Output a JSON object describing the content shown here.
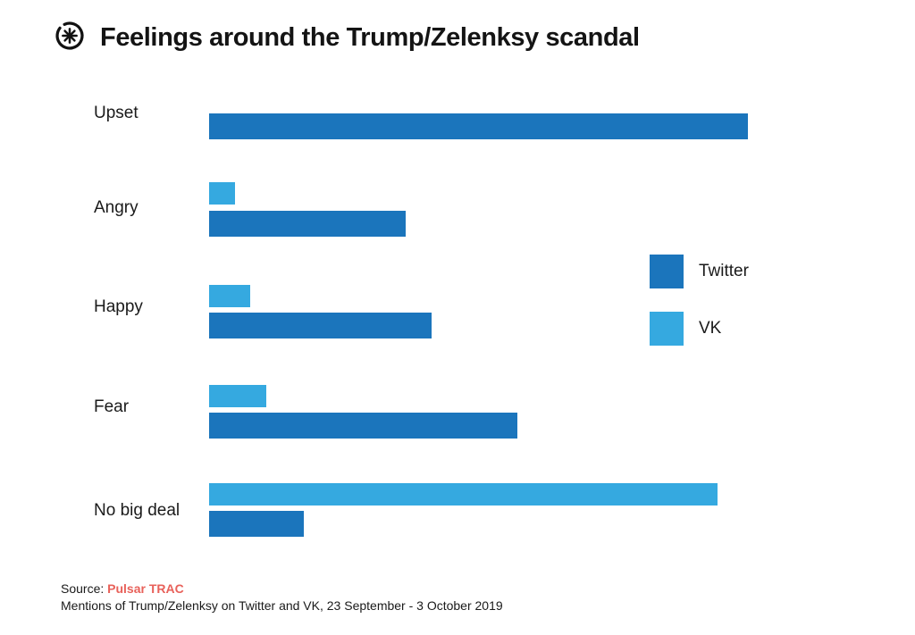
{
  "page": {
    "title": "Feelings around the Trump/Zelenksy scandal"
  },
  "logo": {
    "name": "pulsar-asterisk-logo"
  },
  "colors": {
    "twitter": "#1b75bc",
    "vk": "#35a9e0",
    "source_accent": "#e8615a",
    "text": "#1a1a1a"
  },
  "legend": {
    "position": "right",
    "entries": [
      {
        "label": "Twitter",
        "series": "twitter"
      },
      {
        "label": "VK",
        "series": "vk"
      }
    ]
  },
  "source": {
    "prefix": "Source:",
    "name": "Pulsar TRAC",
    "caption": "Mentions of Trump/Zelenksy on Twitter and VK, 23 September - 3  October 2019"
  },
  "chart_data": {
    "type": "bar",
    "orientation": "horizontal",
    "title": "Feelings around the Trump/Zelenksy scandal",
    "categories": [
      "Upset",
      "Angry",
      "Happy",
      "Fear",
      "No big deal"
    ],
    "series": [
      {
        "name": "Twitter",
        "values": [
          100,
          36.5,
          41.3,
          57.2,
          17.6
        ]
      },
      {
        "name": "VK",
        "values": [
          null,
          4.8,
          7.6,
          10.6,
          94.4
        ]
      }
    ],
    "unit": "relative volume of mentions (% of largest bar; no numeric axis shown)",
    "xlim": [
      0,
      100
    ],
    "grid": false,
    "axis_ticks_shown": false,
    "legend_position": "right-middle"
  }
}
